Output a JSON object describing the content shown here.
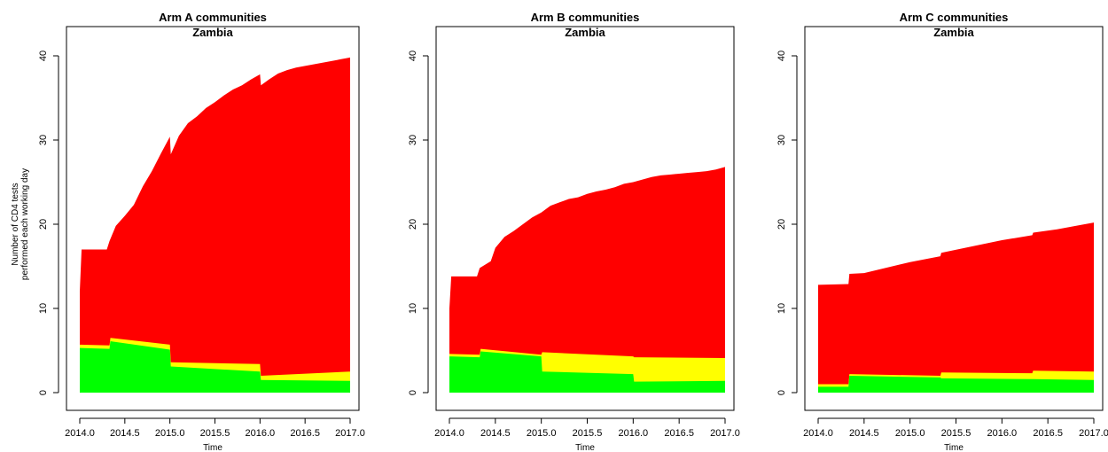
{
  "chart_data": [
    {
      "type": "area",
      "title": "Arm A communities",
      "subtitle": "Zambia",
      "xlabel": "Time",
      "ylabel": "Number of CD4 tests performed each working day",
      "xlim": [
        2014.0,
        2017.0
      ],
      "ylim": [
        0,
        40
      ],
      "xticks": [
        "2014.0",
        "2014.5",
        "2015.0",
        "2015.5",
        "2016.0",
        "2016.5",
        "2017.0"
      ],
      "yticks": [
        "0",
        "10",
        "20",
        "30",
        "40"
      ],
      "x": [
        2014.0,
        2014.33,
        2014.34,
        2015.0,
        2015.01,
        2016.0,
        2016.01,
        2017.0
      ],
      "series": [
        {
          "color": "#00ff00",
          "values": [
            5.3,
            5.2,
            6.1,
            5.1,
            3.1,
            2.5,
            1.5,
            1.4
          ]
        },
        {
          "color": "#ffff00",
          "values": [
            5.7,
            5.6,
            6.5,
            5.7,
            3.6,
            3.4,
            2.0,
            2.5
          ]
        },
        {
          "color": "#ff0000",
          "x": [
            2014.0,
            2014.02,
            2014.3,
            2014.33,
            2014.4,
            2014.5,
            2014.6,
            2014.7,
            2014.8,
            2014.9,
            2015.0,
            2015.01,
            2015.1,
            2015.2,
            2015.3,
            2015.4,
            2015.5,
            2015.6,
            2015.7,
            2015.8,
            2015.9,
            2016.0,
            2016.01,
            2016.1,
            2016.2,
            2016.3,
            2016.4,
            2016.5,
            2016.6,
            2016.7,
            2016.8,
            2016.9,
            2017.0
          ],
          "values": [
            12.0,
            17.0,
            17.0,
            18.0,
            19.8,
            21.0,
            22.3,
            24.5,
            26.3,
            28.4,
            30.4,
            28.3,
            30.5,
            32.0,
            32.8,
            33.8,
            34.5,
            35.3,
            36.0,
            36.5,
            37.2,
            37.8,
            36.5,
            37.2,
            37.9,
            38.3,
            38.6,
            38.8,
            39.0,
            39.2,
            39.4,
            39.6,
            39.8
          ]
        }
      ]
    },
    {
      "type": "area",
      "title": "Arm B communities",
      "subtitle": "Zambia",
      "xlabel": "Time",
      "ylabel": "",
      "xlim": [
        2014.0,
        2017.0
      ],
      "ylim": [
        0,
        40
      ],
      "xticks": [
        "2014.0",
        "2014.5",
        "2015.0",
        "2015.5",
        "2016.0",
        "2016.5",
        "2017.0"
      ],
      "yticks": [
        "0",
        "10",
        "20",
        "30",
        "40"
      ],
      "x": [
        2014.0,
        2014.33,
        2014.34,
        2015.0,
        2015.01,
        2016.0,
        2016.01,
        2017.0
      ],
      "series": [
        {
          "color": "#00ff00",
          "values": [
            4.3,
            4.2,
            4.9,
            4.3,
            2.5,
            2.2,
            1.3,
            1.4
          ]
        },
        {
          "color": "#ffff00",
          "values": [
            4.6,
            4.5,
            5.2,
            4.5,
            4.8,
            4.3,
            4.2,
            4.1
          ]
        },
        {
          "color": "#ff0000",
          "x": [
            2014.0,
            2014.02,
            2014.3,
            2014.33,
            2014.45,
            2014.5,
            2014.6,
            2014.7,
            2014.8,
            2014.9,
            2015.0,
            2015.1,
            2015.2,
            2015.3,
            2015.4,
            2015.5,
            2015.6,
            2015.7,
            2015.8,
            2015.9,
            2016.0,
            2016.1,
            2016.2,
            2016.3,
            2016.4,
            2016.5,
            2016.6,
            2016.7,
            2016.8,
            2016.9,
            2017.0
          ],
          "values": [
            10.0,
            13.8,
            13.8,
            14.8,
            15.6,
            17.2,
            18.5,
            19.2,
            20.0,
            20.8,
            21.4,
            22.2,
            22.6,
            23.0,
            23.2,
            23.6,
            23.9,
            24.1,
            24.4,
            24.8,
            25.0,
            25.3,
            25.6,
            25.8,
            25.9,
            26.0,
            26.1,
            26.2,
            26.3,
            26.5,
            26.8
          ]
        }
      ]
    },
    {
      "type": "area",
      "title": "Arm C communities",
      "subtitle": "Zambia",
      "xlabel": "Time",
      "ylabel": "",
      "xlim": [
        2014.0,
        2017.0
      ],
      "ylim": [
        0,
        40
      ],
      "xticks": [
        "2014.0",
        "2014.5",
        "2015.0",
        "2015.5",
        "2016.0",
        "2016.5",
        "2017.0"
      ],
      "yticks": [
        "0",
        "10",
        "20",
        "30",
        "40"
      ],
      "x": [
        2014.0,
        2014.33,
        2014.34,
        2015.33,
        2015.34,
        2016.33,
        2016.34,
        2017.0
      ],
      "series": [
        {
          "color": "#00ff00",
          "values": [
            0.7,
            0.7,
            2.0,
            1.8,
            1.7,
            1.6,
            1.6,
            1.5
          ]
        },
        {
          "color": "#ffff00",
          "values": [
            1.0,
            1.0,
            2.2,
            2.0,
            2.4,
            2.3,
            2.6,
            2.5
          ]
        },
        {
          "color": "#ff0000",
          "x": [
            2014.0,
            2014.33,
            2014.34,
            2014.5,
            2015.0,
            2015.33,
            2015.34,
            2015.6,
            2016.0,
            2016.33,
            2016.34,
            2016.6,
            2017.0
          ],
          "values": [
            12.8,
            12.9,
            14.1,
            14.2,
            15.5,
            16.2,
            16.6,
            17.2,
            18.1,
            18.7,
            19.0,
            19.4,
            20.2
          ]
        }
      ]
    }
  ]
}
